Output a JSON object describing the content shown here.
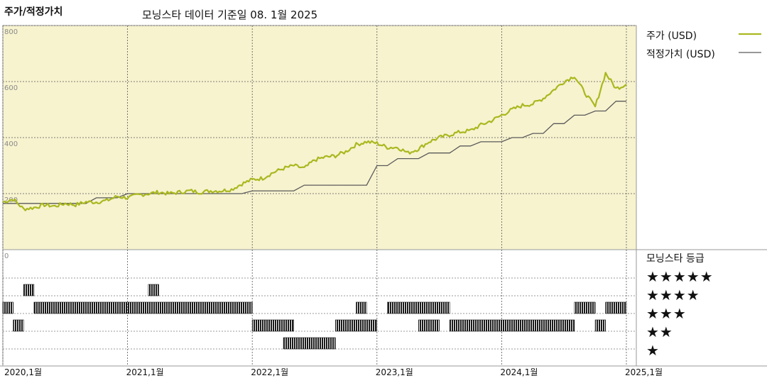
{
  "header": {
    "title": "주가/적정가치",
    "subtitle": "모닝스타 데이터 기준일 08. 1월 2025"
  },
  "legend": {
    "price": "주가 (USD)",
    "fair_value": "적정가치 (USD)",
    "rating_title": "모닝스타 등급"
  },
  "colors": {
    "price_line": "#a9b81f",
    "fair_value_line": "#5a5a5a",
    "plot_bg": "#f7f3cf",
    "rating_bar": "#1a1a1a"
  },
  "chart_data": {
    "type": "line",
    "y_ticks": [
      "800",
      "600",
      "400",
      "200",
      "0"
    ],
    "ylim": [
      0,
      800
    ],
    "x_ticks": [
      "2020,1월",
      "2021,1월",
      "2022,1월",
      "2023,1월",
      "2024,1월",
      "2025,1월"
    ],
    "xlim": [
      "2020-01",
      "2025-01"
    ],
    "grid": true,
    "legend_position": "right",
    "series": [
      {
        "name": "주가 (USD)",
        "points": [
          [
            "2020-01",
            170
          ],
          [
            "2020-02",
            180
          ],
          [
            "2020-03",
            145
          ],
          [
            "2020-04",
            150
          ],
          [
            "2020-05",
            160
          ],
          [
            "2020-06",
            155
          ],
          [
            "2020-07",
            165
          ],
          [
            "2020-08",
            160
          ],
          [
            "2020-09",
            170
          ],
          [
            "2020-10",
            170
          ],
          [
            "2020-11",
            175
          ],
          [
            "2020-12",
            190
          ],
          [
            "2021-01",
            185
          ],
          [
            "2021-02",
            195
          ],
          [
            "2021-03",
            200
          ],
          [
            "2021-04",
            205
          ],
          [
            "2021-05",
            200
          ],
          [
            "2021-06",
            205
          ],
          [
            "2021-07",
            210
          ],
          [
            "2021-08",
            205
          ],
          [
            "2021-09",
            210
          ],
          [
            "2021-10",
            210
          ],
          [
            "2021-11",
            215
          ],
          [
            "2021-12",
            235
          ],
          [
            "2022-01",
            250
          ],
          [
            "2022-02",
            255
          ],
          [
            "2022-03",
            275
          ],
          [
            "2022-04",
            290
          ],
          [
            "2022-05",
            300
          ],
          [
            "2022-06",
            290
          ],
          [
            "2022-07",
            320
          ],
          [
            "2022-08",
            330
          ],
          [
            "2022-09",
            335
          ],
          [
            "2022-10",
            350
          ],
          [
            "2022-11",
            375
          ],
          [
            "2022-12",
            385
          ],
          [
            "2023-01",
            380
          ],
          [
            "2023-02",
            365
          ],
          [
            "2023-03",
            365
          ],
          [
            "2023-04",
            345
          ],
          [
            "2023-05",
            360
          ],
          [
            "2023-06",
            385
          ],
          [
            "2023-07",
            400
          ],
          [
            "2023-08",
            410
          ],
          [
            "2023-09",
            420
          ],
          [
            "2023-10",
            425
          ],
          [
            "2023-11",
            445
          ],
          [
            "2023-12",
            460
          ],
          [
            "2024-01",
            480
          ],
          [
            "2024-02",
            500
          ],
          [
            "2024-03",
            515
          ],
          [
            "2024-04",
            520
          ],
          [
            "2024-05",
            540
          ],
          [
            "2024-06",
            570
          ],
          [
            "2024-07",
            600
          ],
          [
            "2024-08",
            620
          ],
          [
            "2024-09",
            560
          ],
          [
            "2024-10",
            510
          ],
          [
            "2024-11",
            630
          ],
          [
            "2024-12",
            575
          ],
          [
            "2025-01",
            590
          ]
        ]
      },
      {
        "name": "적정가치 (USD)",
        "points": [
          [
            "2020-01",
            165
          ],
          [
            "2020-09",
            165
          ],
          [
            "2020-10",
            185
          ],
          [
            "2020-12",
            185
          ],
          [
            "2021-01",
            200
          ],
          [
            "2021-12",
            200
          ],
          [
            "2022-01",
            210
          ],
          [
            "2022-05",
            210
          ],
          [
            "2022-06",
            230
          ],
          [
            "2022-12",
            230
          ],
          [
            "2023-01",
            300
          ],
          [
            "2023-02",
            300
          ],
          [
            "2023-03",
            325
          ],
          [
            "2023-05",
            325
          ],
          [
            "2023-06",
            345
          ],
          [
            "2023-08",
            345
          ],
          [
            "2023-09",
            370
          ],
          [
            "2023-10",
            370
          ],
          [
            "2023-11",
            385
          ],
          [
            "2024-01",
            385
          ],
          [
            "2024-02",
            400
          ],
          [
            "2024-03",
            400
          ],
          [
            "2024-04",
            415
          ],
          [
            "2024-05",
            415
          ],
          [
            "2024-06",
            450
          ],
          [
            "2024-07",
            450
          ],
          [
            "2024-08",
            480
          ],
          [
            "2024-09",
            480
          ],
          [
            "2024-10",
            495
          ],
          [
            "2024-11",
            495
          ],
          [
            "2024-12",
            530
          ],
          [
            "2025-01",
            530
          ]
        ]
      }
    ],
    "rating": {
      "title": "모닝스타 등급",
      "levels": [
        "★★★★★",
        "★★★★",
        "★★★",
        "★★",
        "★"
      ],
      "segments": [
        {
          "stars": 4,
          "start": "2020-03",
          "end": "2020-04"
        },
        {
          "stars": 4,
          "start": "2021-03",
          "end": "2021-04"
        },
        {
          "stars": 3,
          "start": "2020-01",
          "end": "2020-02"
        },
        {
          "stars": 3,
          "start": "2020-04",
          "end": "2022-01"
        },
        {
          "stars": 2,
          "start": "2020-02",
          "end": "2020-03"
        },
        {
          "stars": 2,
          "start": "2022-01",
          "end": "2022-05"
        },
        {
          "stars": 1,
          "start": "2022-04",
          "end": "2022-09"
        },
        {
          "stars": 2,
          "start": "2022-09",
          "end": "2023-01"
        },
        {
          "stars": 3,
          "start": "2022-11",
          "end": "2022-12"
        },
        {
          "stars": 3,
          "start": "2023-02",
          "end": "2023-05"
        },
        {
          "stars": 3,
          "start": "2023-05",
          "end": "2023-08"
        },
        {
          "stars": 2,
          "start": "2023-05",
          "end": "2023-06"
        },
        {
          "stars": 2,
          "start": "2023-06",
          "end": "2023-07"
        },
        {
          "stars": 2,
          "start": "2023-08",
          "end": "2024-08"
        },
        {
          "stars": 3,
          "start": "2024-08",
          "end": "2024-10"
        },
        {
          "stars": 2,
          "start": "2024-10",
          "end": "2024-11"
        },
        {
          "stars": 3,
          "start": "2024-11",
          "end": "2025-01"
        }
      ]
    }
  }
}
